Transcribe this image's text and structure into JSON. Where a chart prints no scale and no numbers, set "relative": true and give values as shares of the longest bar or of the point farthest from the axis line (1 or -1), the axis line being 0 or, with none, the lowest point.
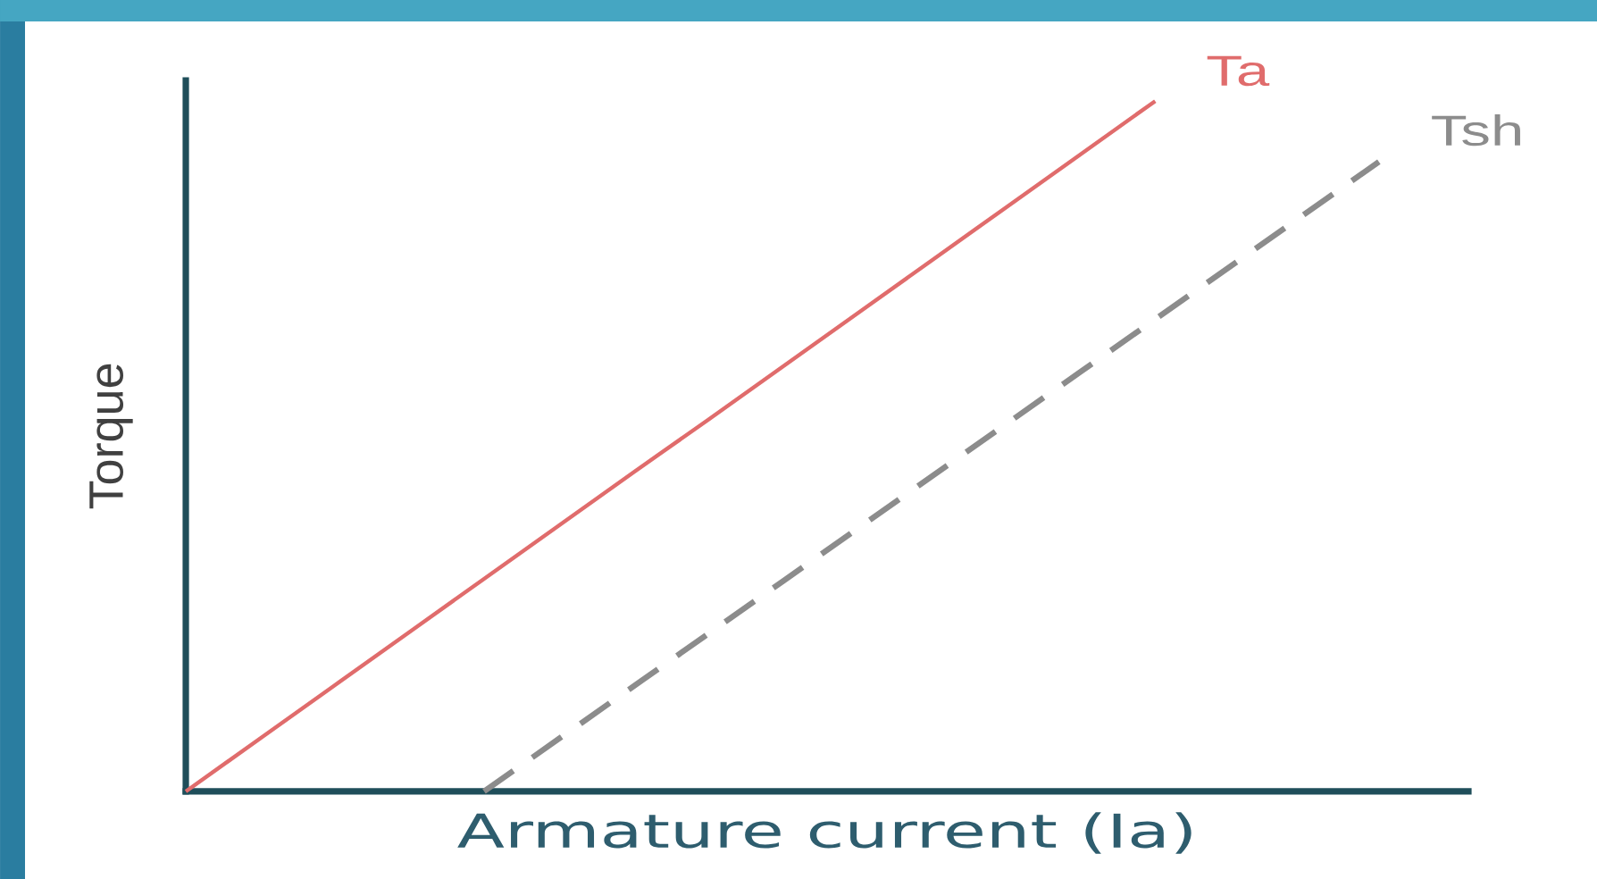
{
  "chart_data": {
    "type": "line",
    "xlabel": "Armature current (Ia)",
    "ylabel": "Torque",
    "relative": true,
    "categories": [
      null,
      null,
      null,
      null,
      null,
      null,
      null,
      null,
      null,
      null,
      null,
      null,
      null,
      null,
      null,
      null,
      null
    ],
    "series": [
      {
        "name": "Ta",
        "color": "#e06c6c",
        "values": [
          0,
          0.077,
          0.154,
          0.231,
          0.308,
          0.385,
          0.462,
          0.538,
          0.615,
          0.692,
          0.769,
          0.846,
          0.923,
          1,
          null,
          null,
          null
        ],
        "line_style": "solid"
      },
      {
        "name": "Tsh",
        "color": "#8c8c8c",
        "values": [
          null,
          null,
          null,
          null,
          0,
          0.076,
          0.152,
          0.228,
          0.304,
          0.38,
          0.456,
          0.532,
          0.608,
          0.684,
          0.76,
          0.836,
          0.912
        ],
        "line_style": "dashed"
      }
    ]
  }
}
